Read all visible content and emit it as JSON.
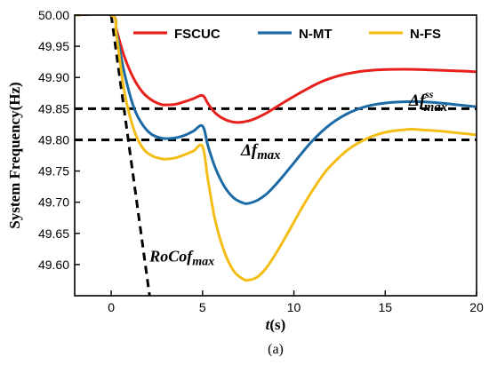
{
  "chart_data": {
    "type": "line",
    "xlabel_italic": "t",
    "xlabel_rest": "(s)",
    "ylabel": "System Frequency(Hz)",
    "xlim": [
      -2,
      20
    ],
    "ylim": [
      49.55,
      50.0
    ],
    "x_ticks": [
      0,
      5,
      10,
      15,
      20
    ],
    "y_ticks": [
      50.0,
      49.95,
      49.9,
      49.85,
      49.8,
      49.75,
      49.7,
      49.65,
      49.6
    ],
    "y_tick_labels": [
      "50.00",
      "49.95",
      "49.90",
      "49.85",
      "49.80",
      "49.75",
      "49.70",
      "49.65",
      "49.60"
    ],
    "x_tick_labels": [
      "0",
      "5",
      "10",
      "15",
      "20"
    ],
    "series": [
      {
        "name": "FSCUC",
        "color": "#e8201c",
        "x": [
          -2,
          0,
          0.3,
          0.7,
          1.2,
          1.7,
          2.2,
          2.7,
          3.0,
          3.5,
          4.0,
          4.5,
          5.0,
          5.3,
          5.7,
          6.2,
          6.8,
          7.3,
          7.8,
          8.5,
          9.5,
          10.5,
          11.5,
          12.5,
          13.5,
          14.5,
          15.5,
          16.5,
          17.5,
          18.5,
          19.5,
          20
        ],
        "y": [
          50.0,
          50.0,
          49.975,
          49.935,
          49.9,
          49.877,
          49.864,
          49.857,
          49.856,
          49.857,
          49.861,
          49.866,
          49.871,
          49.858,
          49.843,
          49.833,
          49.828,
          49.829,
          49.833,
          49.843,
          49.861,
          49.878,
          49.893,
          49.903,
          49.909,
          49.912,
          49.913,
          49.913,
          49.912,
          49.911,
          49.91,
          49.909
        ]
      },
      {
        "name": "N-MT",
        "color": "#1b6aa5",
        "x": [
          -2,
          0,
          0.3,
          0.7,
          1.2,
          1.7,
          2.2,
          2.7,
          3.0,
          3.5,
          4.0,
          4.5,
          5.0,
          5.3,
          5.7,
          6.2,
          6.7,
          7.2,
          7.5,
          8.0,
          8.5,
          9.0,
          9.5,
          10.0,
          11.0,
          12.0,
          13.0,
          14.0,
          15.0,
          16.0,
          17.0,
          18.0,
          19.0,
          20.0
        ],
        "y": [
          50.0,
          50.0,
          49.97,
          49.91,
          49.855,
          49.825,
          49.809,
          49.803,
          49.802,
          49.803,
          49.807,
          49.814,
          49.822,
          49.79,
          49.755,
          49.725,
          49.707,
          49.699,
          49.698,
          49.703,
          49.713,
          49.728,
          49.745,
          49.763,
          49.798,
          49.825,
          49.843,
          49.854,
          49.859,
          49.861,
          49.861,
          49.859,
          49.856,
          49.853
        ]
      },
      {
        "name": "N-FS",
        "color": "#f4bd16",
        "x": [
          -2,
          0,
          0.3,
          0.7,
          1.2,
          1.7,
          2.2,
          2.7,
          3.0,
          3.5,
          4.0,
          4.5,
          5.0,
          5.3,
          5.7,
          6.2,
          6.7,
          7.2,
          7.5,
          8.0,
          8.5,
          9.0,
          9.5,
          10.0,
          10.5,
          11.0,
          11.5,
          12.0,
          13.0,
          14.0,
          15.0,
          16.0,
          16.5,
          17.0,
          18.0,
          19.0,
          20.0
        ],
        "y": [
          50.0,
          50.0,
          49.965,
          49.88,
          49.82,
          49.788,
          49.775,
          49.77,
          49.769,
          49.771,
          49.776,
          49.782,
          49.789,
          49.735,
          49.67,
          49.62,
          49.59,
          49.577,
          49.575,
          49.58,
          49.595,
          49.617,
          49.642,
          49.668,
          49.694,
          49.718,
          49.74,
          49.758,
          49.785,
          49.802,
          49.812,
          49.816,
          49.817,
          49.816,
          49.814,
          49.811,
          49.808
        ]
      }
    ],
    "reference_lines": [
      {
        "type": "horizontal",
        "y": 49.85,
        "style": "dashed",
        "color": "#000000"
      },
      {
        "type": "horizontal",
        "y": 49.8,
        "style": "dashed",
        "color": "#000000"
      },
      {
        "type": "segment",
        "from": [
          0,
          50.0
        ],
        "to": [
          2.1,
          49.55
        ],
        "style": "dashed",
        "color": "#000000"
      }
    ],
    "annotations": {
      "rocof": {
        "base": "RoCof",
        "sub": "max",
        "x": 2.1,
        "y": 49.605
      },
      "delta_f_max": {
        "base": "Δf",
        "sub": "max",
        "x": 7.1,
        "y": 49.775
      },
      "delta_f_ss": {
        "base": "Δf",
        "sub": "max",
        "sup": "ss",
        "x": 16.3,
        "y": 49.855
      }
    },
    "legend_position": "top",
    "grid": false
  },
  "caption": "(a)"
}
